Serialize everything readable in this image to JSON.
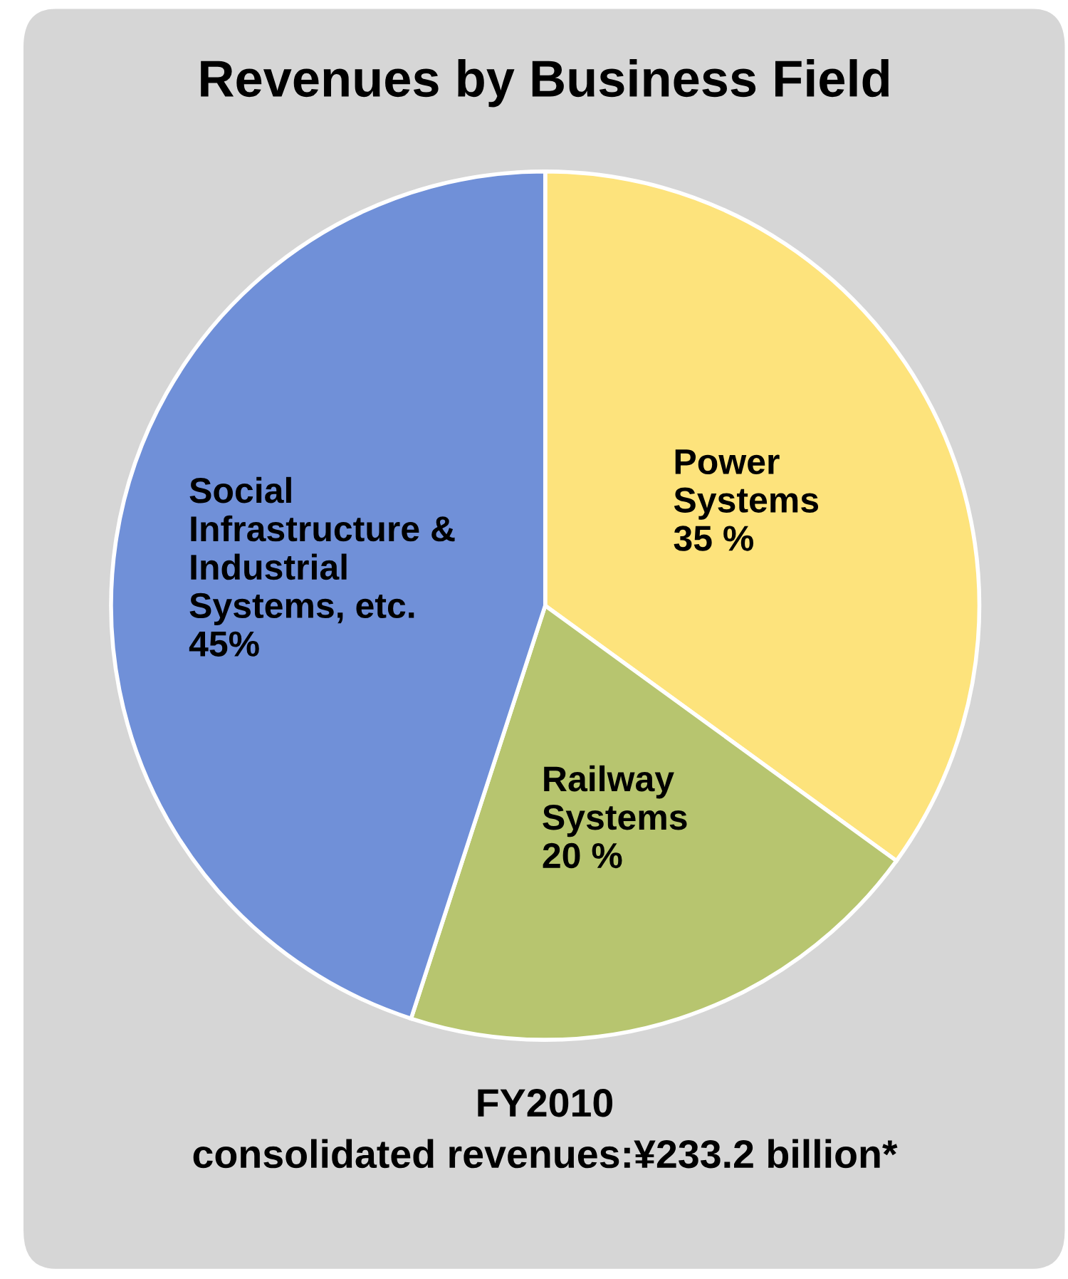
{
  "chart_data": {
    "type": "pie",
    "title": "Revenues by Business Field",
    "categories": [
      "Power\nSystems",
      "Railway\nSystems",
      "Social\nInfrastructure &\nIndustrial\nSystems, etc."
    ],
    "values": [
      35,
      20,
      45
    ],
    "value_labels": [
      "35 %",
      "20 %",
      "45%"
    ],
    "colors": [
      "#fde37c",
      "#b7c56f",
      "#7090d8"
    ],
    "annotations": [
      "FY2010\nconsolidated revenues:¥233.2 billion*"
    ],
    "legend": false
  }
}
